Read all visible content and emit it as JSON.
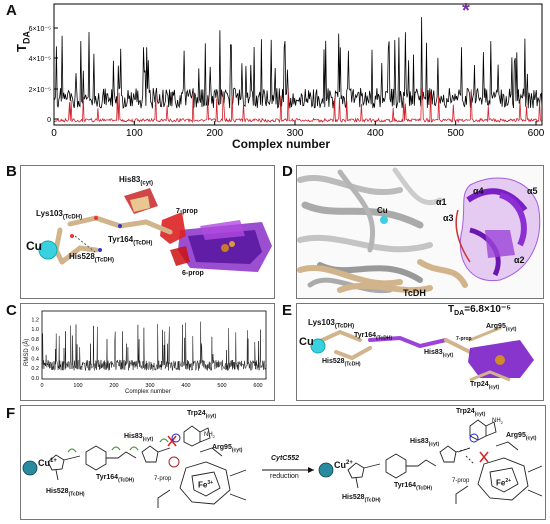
{
  "panels": {
    "A": "A",
    "B": "B",
    "C": "C",
    "D": "D",
    "E": "E",
    "F": "F"
  },
  "panelA": {
    "ylabel": "T",
    "ylabel_sub": "DA",
    "xlabel": "Complex number",
    "yticks": [
      "0",
      "2×10⁻⁵",
      "4×10⁻⁵",
      "6×10⁻⁵"
    ],
    "xticks": [
      "0",
      "100",
      "200",
      "300",
      "400",
      "500",
      "600"
    ],
    "asterisk": "*",
    "series_colors": {
      "black": "#000000",
      "red": "#d0202a"
    }
  },
  "panelB": {
    "labels": {
      "his83": "His83",
      "his83_sub": "(cyt)",
      "lys103": "Lys103",
      "lys103_sub": "(TcDH)",
      "cu": "Cu",
      "tyr164": "Tyr164",
      "tyr164_sub": "(TcDH)",
      "his528": "His528",
      "his528_sub": "(TcDH)",
      "prop7": "7-prop",
      "prop6": "6-prop"
    }
  },
  "panelC": {
    "ylabel": "RMSD (Å)",
    "xlabel": "Complex number",
    "yticks": [
      "0.0",
      "0.2",
      "0.4",
      "0.6",
      "0.8",
      "1.0",
      "1.2"
    ],
    "xticks": [
      "0",
      "100",
      "200",
      "300",
      "400",
      "500",
      "600"
    ]
  },
  "panelD": {
    "labels": {
      "a1": "α1",
      "a3": "α3",
      "a4": "α4",
      "a5": "α5",
      "a2": "α2",
      "cu": "Cu",
      "tcdh": "TcDH"
    }
  },
  "panelE": {
    "tda": "T",
    "tda_sub": "DA",
    "tda_val": "=6.8×10⁻⁵",
    "labels": {
      "lys103": "Lys103",
      "lys103_sub": "(TcDH)",
      "cu": "Cu",
      "tyr164": "Tyr164",
      "tyr164_sub": "(TcDH)",
      "his528": "His528",
      "his528_sub": "(TcDH)",
      "his83": "His83",
      "his83_sub": "(cyt)",
      "arg95": "Arg95",
      "arg95_sub": "(cyt)",
      "trp24": "Trp24",
      "trp24_sub": "(cyt)",
      "prop7": "7-prop"
    }
  },
  "panelF": {
    "left": {
      "cu": "Cu",
      "cu_charge": "1+",
      "his83": "His83",
      "his83_sub": "(cyt)",
      "trp24": "Trp24",
      "trp24_sub": "(cyt)",
      "arg95": "Arg95",
      "arg95_sub": "(cyt)",
      "tyr164": "Tyr164",
      "tyr164_sub": "(TcDH)",
      "his528": "His528",
      "his528_sub": "(TcDH)",
      "prop7": "7-prop",
      "fe": "Fe",
      "fe_charge": "3+",
      "nh2": "NH",
      "nh2_sub": "2"
    },
    "arrow": {
      "top": "CytC552",
      "bottom": "reduction"
    },
    "right": {
      "cu": "Cu",
      "cu_charge": "2+",
      "his83": "His83",
      "his83_sub": "(cyt)",
      "trp24": "Trp24",
      "trp24_sub": "(cyt)",
      "arg95": "Arg95",
      "arg95_sub": "(cyt)",
      "tyr164": "Tyr164",
      "tyr164_sub": "(TcDH)",
      "his528": "His528",
      "his528_sub": "(TcDH)",
      "prop7": "7-prop",
      "fe": "Fe",
      "fe_charge": "2+",
      "nh2": "NH",
      "nh2_sub": "2"
    }
  }
}
